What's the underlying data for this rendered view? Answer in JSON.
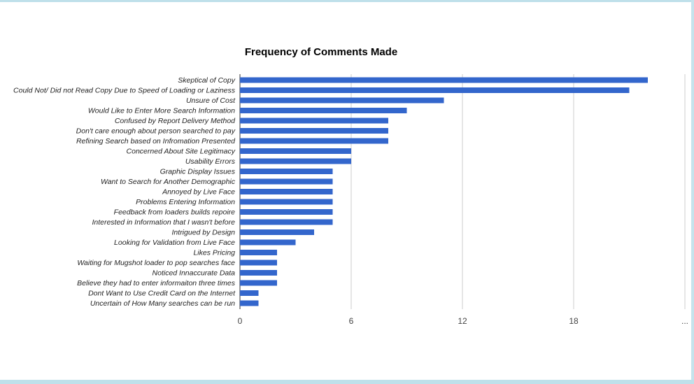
{
  "chart_data": {
    "type": "bar",
    "orientation": "horizontal",
    "title": "Frequency of Comments Made",
    "xlabel": "",
    "ylabel": "",
    "xlim": [
      0,
      24
    ],
    "grid": true,
    "bar_color": "#3366cc",
    "grid_color": "#cccccc",
    "x_tick_labels": [
      "0",
      "6",
      "12",
      "18",
      "..."
    ],
    "categories": [
      "Skeptical of Copy",
      "Could Not/ Did not Read Copy Due to Speed of Loading or Laziness",
      "Unsure of Cost",
      "Would Like to Enter More Search Information",
      "Confused by Report Delivery Method",
      "Don't care enough about person searched to pay",
      "Refining Search based on Infromation Presented",
      "Concerned About Site Legitimacy",
      "Usability Errors",
      "Graphic Display Issues",
      "Want to Search for Another Demographic",
      "Annoyed by Live Face",
      "Problems Entering Information",
      "Feedback from loaders builds repoire",
      "Interested in Information that I wasn't before",
      "Intrigued by Design",
      "Looking for Validation from Live Face",
      "Likes Pricing",
      "Waiting for Mugshot loader to pop searches face",
      "Noticed Innaccurate Data",
      "Believe they had to enter informaiton three times",
      "Dont Want to Use Credit Card on the Internet",
      "Uncertain of How Many searches can be run"
    ],
    "values": [
      22,
      21,
      11,
      9,
      8,
      8,
      8,
      6,
      6,
      5,
      5,
      5,
      5,
      5,
      5,
      4,
      3,
      2,
      2,
      2,
      2,
      1,
      1
    ]
  }
}
